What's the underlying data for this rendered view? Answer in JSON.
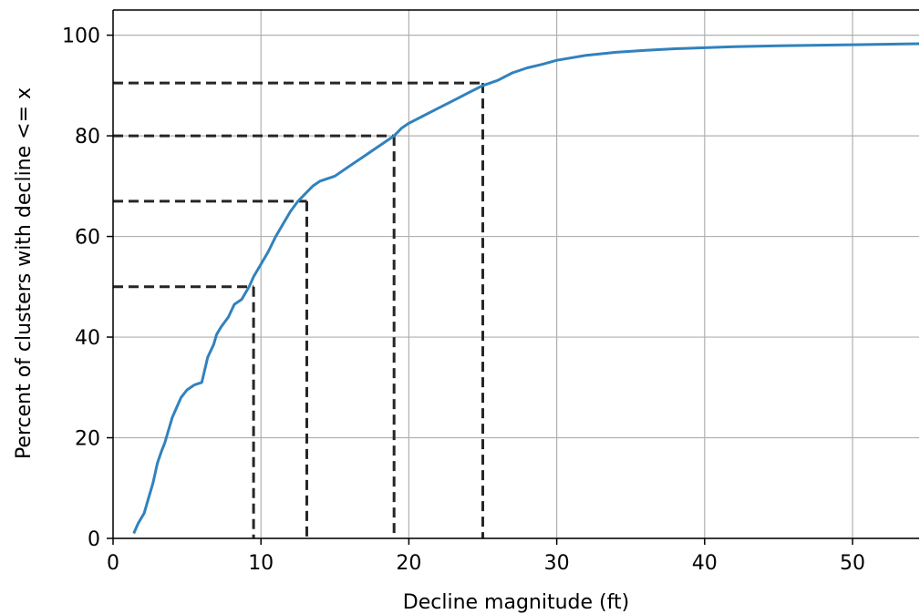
{
  "chart_data": {
    "type": "line",
    "title": "",
    "xlabel": "Decline magnitude (ft)",
    "ylabel": "Percent of clusters with decline <= x",
    "xlim": [
      0,
      54.5
    ],
    "ylim": [
      0,
      105
    ],
    "grid": true,
    "legend": "none",
    "x_ticks": [
      0,
      10,
      20,
      30,
      40,
      50
    ],
    "y_ticks": [
      0,
      20,
      40,
      60,
      80,
      100
    ],
    "colors": {
      "curve": "#3182bd",
      "reference_lines": "#262626",
      "grid": "#b0b0b0",
      "axes": "#000000"
    },
    "series": [
      {
        "x": [
          1.4,
          1.7,
          2.1,
          2.4,
          2.7,
          3.0,
          3.3,
          3.5,
          3.7,
          4.0,
          4.3,
          4.6,
          5.0,
          5.5,
          6.0,
          6.4,
          6.8,
          7.0,
          7.3,
          7.8,
          8.2,
          8.7,
          9.2,
          9.5,
          10.0,
          10.5,
          11.0,
          11.5,
          12.0,
          12.5,
          13.0,
          13.5,
          14.0,
          15.0,
          16.0,
          17.0,
          18.0,
          19.0,
          19.5,
          20.0,
          21.0,
          22.0,
          23.0,
          24.0,
          25.0,
          26.0,
          27.0,
          28.0,
          29.0,
          30.0,
          32.0,
          34.0,
          36.0,
          38.0,
          40.0,
          42.0,
          45.0,
          50.0,
          54.5
        ],
        "y": [
          1.0,
          3.0,
          5.0,
          8.0,
          11.0,
          15.0,
          17.5,
          19.0,
          21.0,
          24.0,
          26.0,
          28.0,
          29.5,
          30.5,
          31.0,
          36.0,
          38.5,
          40.5,
          42.0,
          44.0,
          46.5,
          47.5,
          50.0,
          52.0,
          54.5,
          57.0,
          60.0,
          62.5,
          65.0,
          67.0,
          68.5,
          70.0,
          71.0,
          72.0,
          74.0,
          76.0,
          78.0,
          80.0,
          81.5,
          82.5,
          84.0,
          85.5,
          87.0,
          88.5,
          90.0,
          91.0,
          92.5,
          93.5,
          94.2,
          95.0,
          96.0,
          96.6,
          97.0,
          97.3,
          97.5,
          97.7,
          97.9,
          98.1,
          98.3
        ]
      }
    ],
    "reference_points": [
      {
        "x": 9.5,
        "y": 50
      },
      {
        "x": 13.1,
        "y": 67
      },
      {
        "x": 19.0,
        "y": 80
      },
      {
        "x": 25.0,
        "y": 90.5
      }
    ]
  }
}
